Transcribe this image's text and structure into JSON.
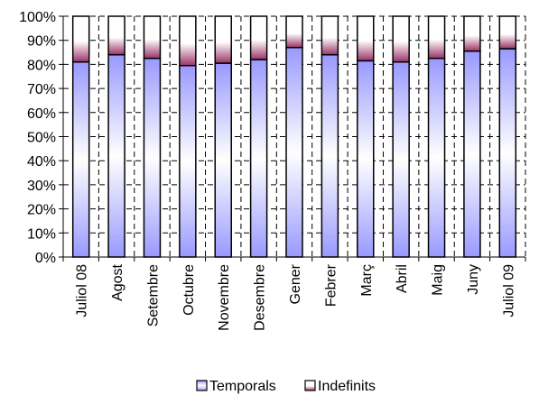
{
  "chart_data": {
    "type": "bar",
    "stacked": true,
    "percent_stacked": true,
    "categories": [
      "Juliol 08",
      "Agost",
      "Setembre",
      "Octubre",
      "Novembre",
      "Desembre",
      "Gener",
      "Febrer",
      "Març",
      "Abril",
      "Maig",
      "Juny",
      "Juliol 09"
    ],
    "series": [
      {
        "name": "Temporals",
        "values": [
          81,
          84,
          82.5,
          79.5,
          80.5,
          82,
          87,
          84,
          81.5,
          81,
          82.5,
          85.5,
          86.5
        ]
      },
      {
        "name": "Indefinits",
        "values": [
          19,
          16,
          17.5,
          20.5,
          19.5,
          18,
          13,
          16,
          18.5,
          19,
          17.5,
          14.5,
          13.5
        ]
      }
    ],
    "y_ticks": [
      "0%",
      "10%",
      "20%",
      "30%",
      "40%",
      "50%",
      "60%",
      "70%",
      "80%",
      "90%",
      "100%"
    ],
    "ylim": [
      0,
      100
    ],
    "grid": true,
    "legend_position": "bottom",
    "colors": {
      "temporals": "#9999ff",
      "indefinits": "#993366",
      "border": "#000000",
      "grid": "#000000"
    }
  }
}
